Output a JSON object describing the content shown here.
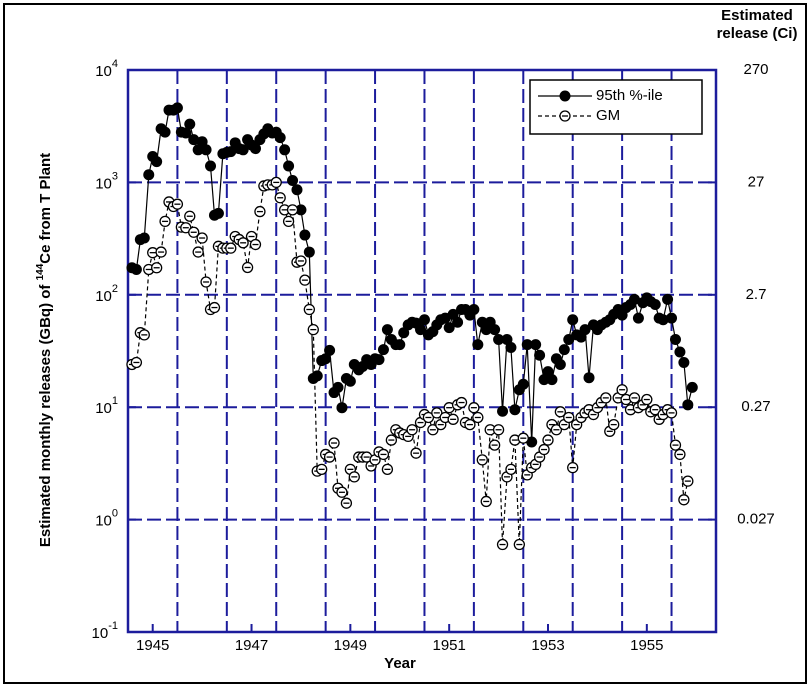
{
  "chart_data": {
    "type": "line",
    "ylabel": {
      "text": "Estimated monthly releases  (GBq) of ",
      "sup": "144",
      "text2": "Ce from T Plant"
    },
    "xlabel": "Year",
    "y2label": [
      "Estimated",
      "release (Ci)"
    ],
    "log_y": true,
    "grid": true,
    "legend": "upper right",
    "x": [
      1944.58,
      1944.67,
      1944.75,
      1944.83,
      1944.92,
      1945,
      1945.08,
      1945.17,
      1945.25,
      1945.33,
      1945.42,
      1945.5,
      1945.58,
      1945.67,
      1945.75,
      1945.83,
      1945.92,
      1946,
      1946.08,
      1946.17,
      1946.25,
      1946.33,
      1946.42,
      1946.5,
      1946.58,
      1946.67,
      1946.75,
      1946.83,
      1946.92,
      1947,
      1947.08,
      1947.17,
      1947.25,
      1947.33,
      1947.42,
      1947.5,
      1947.58,
      1947.67,
      1947.75,
      1947.83,
      1947.92,
      1948,
      1948.08,
      1948.17,
      1948.25,
      1948.33,
      1948.42,
      1948.5,
      1948.58,
      1948.67,
      1948.75,
      1948.83,
      1948.92,
      1949,
      1949.08,
      1949.17,
      1949.25,
      1949.33,
      1949.42,
      1949.5,
      1949.58,
      1949.67,
      1949.75,
      1949.83,
      1949.92,
      1950,
      1950.08,
      1950.17,
      1950.25,
      1950.33,
      1950.42,
      1950.5,
      1950.58,
      1950.67,
      1950.75,
      1950.83,
      1950.92,
      1951,
      1951.08,
      1951.17,
      1951.25,
      1951.33,
      1951.42,
      1951.5,
      1951.58,
      1951.67,
      1951.75,
      1951.83,
      1951.92,
      1952,
      1952.08,
      1952.17,
      1952.25,
      1952.33,
      1952.42,
      1952.5,
      1952.58,
      1952.67,
      1952.75,
      1952.83,
      1952.92,
      1953,
      1953.08,
      1953.17,
      1953.25,
      1953.33,
      1953.42,
      1953.5,
      1953.58,
      1953.67,
      1953.75,
      1953.83,
      1953.92,
      1954,
      1954.08,
      1954.17,
      1954.25,
      1954.33,
      1954.42,
      1954.5,
      1954.58,
      1954.67,
      1954.75,
      1954.83,
      1954.92,
      1955,
      1955.08,
      1955.17,
      1955.25,
      1955.33,
      1955.42,
      1955.5,
      1955.58,
      1955.67,
      1955.75,
      1955.83,
      1955.92
    ],
    "series": [
      {
        "name": "95th %-ile",
        "color": "#000000",
        "marker": "filled",
        "dash": false,
        "values": [
          174,
          168,
          310,
          320,
          1170,
          1700,
          1530,
          3000,
          2800,
          4400,
          4400,
          4600,
          2800,
          2750,
          3300,
          2400,
          1950,
          2300,
          1950,
          1400,
          510,
          530,
          1800,
          1850,
          1880,
          2250,
          2000,
          1950,
          2400,
          2150,
          2000,
          2400,
          2700,
          3000,
          2750,
          2800,
          2500,
          1950,
          1400,
          1040,
          860,
          570,
          340,
          240,
          18,
          19,
          26,
          27,
          32,
          13.5,
          15,
          9.9,
          18,
          17,
          24,
          21.5,
          23,
          26.5,
          24,
          27,
          26.5,
          32.5,
          49,
          40,
          36,
          36,
          46,
          54,
          57,
          56,
          49,
          60,
          44,
          47,
          54,
          60,
          62,
          51,
          67,
          57,
          74,
          74,
          66,
          74,
          36,
          57,
          49,
          57,
          49,
          40,
          9.2,
          40,
          34,
          9.5,
          14.3,
          16,
          36,
          4.9,
          36,
          29,
          17.6,
          20.7,
          17.6,
          27,
          24,
          32.5,
          40,
          60,
          44,
          42,
          49,
          18.3,
          54,
          49,
          54,
          57,
          60,
          67,
          74,
          66,
          77,
          82,
          91,
          62,
          85,
          94,
          87,
          82,
          62,
          60,
          91,
          62,
          40,
          31,
          25,
          10.5,
          15
        ]
      },
      {
        "name": "GM",
        "color": "#000000",
        "marker": "open",
        "dash": true,
        "values": [
          24,
          25,
          46,
          44,
          168,
          237,
          174,
          240,
          450,
          670,
          610,
          640,
          400,
          395,
          500,
          360,
          240,
          320,
          130,
          74,
          77,
          270,
          260,
          260,
          260,
          330,
          310,
          290,
          175,
          330,
          280,
          550,
          930,
          950,
          950,
          1000,
          730,
          570,
          450,
          570,
          195,
          200,
          135,
          74,
          49,
          2.7,
          2.8,
          3.8,
          3.6,
          4.8,
          1.9,
          1.75,
          1.4,
          2.8,
          2.4,
          3.6,
          3.6,
          3.6,
          3.0,
          3.4,
          4.0,
          3.8,
          2.8,
          5.1,
          6.3,
          5.9,
          5.7,
          5.5,
          6.3,
          3.9,
          7.3,
          8.6,
          8.1,
          6.3,
          8.9,
          7.0,
          8.1,
          9.9,
          7.8,
          10.5,
          11,
          7.3,
          7.0,
          9.9,
          8.1,
          3.4,
          1.45,
          6.3,
          4.6,
          6.3,
          0.6,
          2.4,
          2.8,
          5.1,
          0.6,
          5.3,
          2.5,
          2.9,
          3.1,
          3.6,
          4.2,
          5.1,
          7.0,
          6.3,
          9.1,
          7.0,
          8.1,
          2.9,
          7.0,
          8.1,
          8.9,
          9.5,
          8.6,
          9.9,
          11,
          12.1,
          6.1,
          7.0,
          12.1,
          14.3,
          11.7,
          9.5,
          12.1,
          9.9,
          10.5,
          11.7,
          9.1,
          9.5,
          7.8,
          8.6,
          9.5,
          8.9,
          4.6,
          3.8,
          1.5,
          2.2,
          null
        ]
      }
    ],
    "xlim": [
      1944.5,
      1956.4
    ],
    "xticks": [
      1945,
      1947,
      1949,
      1951,
      1953,
      1955
    ],
    "x_gridlines": [
      1945.5,
      1946.5,
      1947.5,
      1948.5,
      1949.5,
      1950.5,
      1951.5,
      1952.5,
      1953.5,
      1954.5,
      1955.5
    ],
    "ylim": [
      0.1,
      10000
    ],
    "yticks": [
      {
        "value": 0.1,
        "label": "10",
        "exponent": "-1"
      },
      {
        "value": 1,
        "label": "10",
        "exponent": "0"
      },
      {
        "value": 10,
        "label": "10",
        "exponent": "1"
      },
      {
        "value": 100,
        "label": "10",
        "exponent": "2"
      },
      {
        "value": 1000,
        "label": "10",
        "exponent": "3"
      },
      {
        "value": 10000,
        "label": "10",
        "exponent": "4"
      }
    ],
    "y2lim": [
      0.0027,
      270
    ],
    "y2ticks": [
      0.027,
      0.27,
      2.7,
      27,
      270
    ]
  }
}
